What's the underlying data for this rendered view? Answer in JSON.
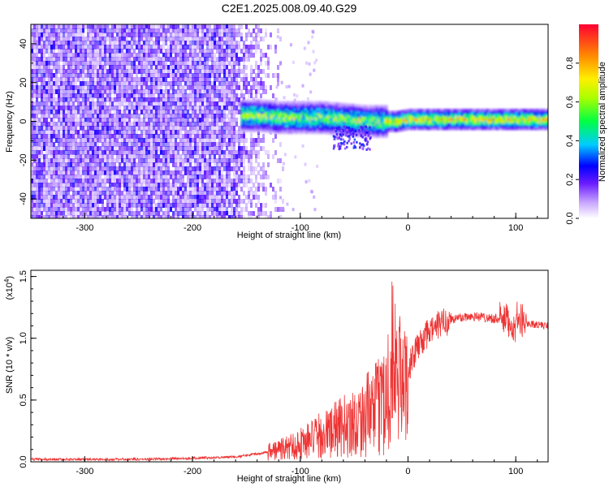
{
  "title": "C2E1.2025.008.09.40.G29",
  "chart_data": [
    {
      "type": "heatmap",
      "xlabel": "Height of straight line (km)",
      "ylabel": "Frequency (Hz)",
      "xlim": [
        -350,
        130
      ],
      "ylim": [
        -50,
        50
      ],
      "x_ticks": [
        -300,
        -200,
        -100,
        0,
        100
      ],
      "x_tick_labels": [
        "-300",
        "-200",
        "-100",
        "0",
        "100"
      ],
      "y_ticks": [
        -40,
        -20,
        0,
        20,
        40
      ],
      "y_tick_labels": [
        "-40",
        "-20",
        "0",
        "20",
        "40"
      ],
      "colorbar": {
        "label": "Normalized spectral amplitude",
        "range": [
          0,
          1
        ],
        "ticks": [
          0.0,
          0.2,
          0.4,
          0.6,
          0.8
        ],
        "tick_labels": [
          "0.0",
          "0.2",
          "0.4",
          "0.6",
          "0.8"
        ]
      },
      "ridge": {
        "x": [
          -155,
          -140,
          -120,
          -100,
          -80,
          -60,
          -40,
          -25,
          -10,
          0,
          20,
          40,
          60,
          80,
          100,
          130
        ],
        "frequency": [
          3,
          3,
          2,
          2,
          2,
          1,
          0,
          0,
          0,
          1,
          1,
          1,
          1,
          1,
          1,
          1
        ]
      },
      "noise_region": {
        "x": [
          -350,
          -125
        ],
        "density": "high"
      }
    },
    {
      "type": "line",
      "xlabel": "Height of straight line (km)",
      "ylabel": "SNR (10 * v/v)",
      "y_scale_label": "(x10",
      "y_scale_exponent": "4",
      "xlim": [
        -350,
        130
      ],
      "ylim": [
        0,
        1.55
      ],
      "x_ticks": [
        -300,
        -200,
        -100,
        0,
        100
      ],
      "x_tick_labels": [
        "-300",
        "-200",
        "-100",
        "0",
        "100"
      ],
      "y_ticks": [
        0.0,
        0.5,
        1.0,
        1.5
      ],
      "y_tick_labels": [
        "0.0",
        "0.5",
        "1.0",
        "1.5"
      ],
      "series": [
        {
          "color": "#ee3333",
          "x": [
            -350,
            -300,
            -250,
            -200,
            -160,
            -130,
            -110,
            -90,
            -70,
            -50,
            -30,
            -20,
            -12,
            -5,
            0,
            10,
            20,
            30,
            40,
            50,
            60,
            70,
            80,
            90,
            95,
            100,
            105,
            110,
            120,
            130
          ],
          "y": [
            0.02,
            0.02,
            0.02,
            0.03,
            0.04,
            0.08,
            0.12,
            0.18,
            0.25,
            0.32,
            0.42,
            0.55,
            0.75,
            0.6,
            0.75,
            0.95,
            1.05,
            1.12,
            1.15,
            1.17,
            1.18,
            1.17,
            1.16,
            1.15,
            1.12,
            1.1,
            1.15,
            1.12,
            1.11,
            1.1
          ]
        }
      ]
    }
  ]
}
